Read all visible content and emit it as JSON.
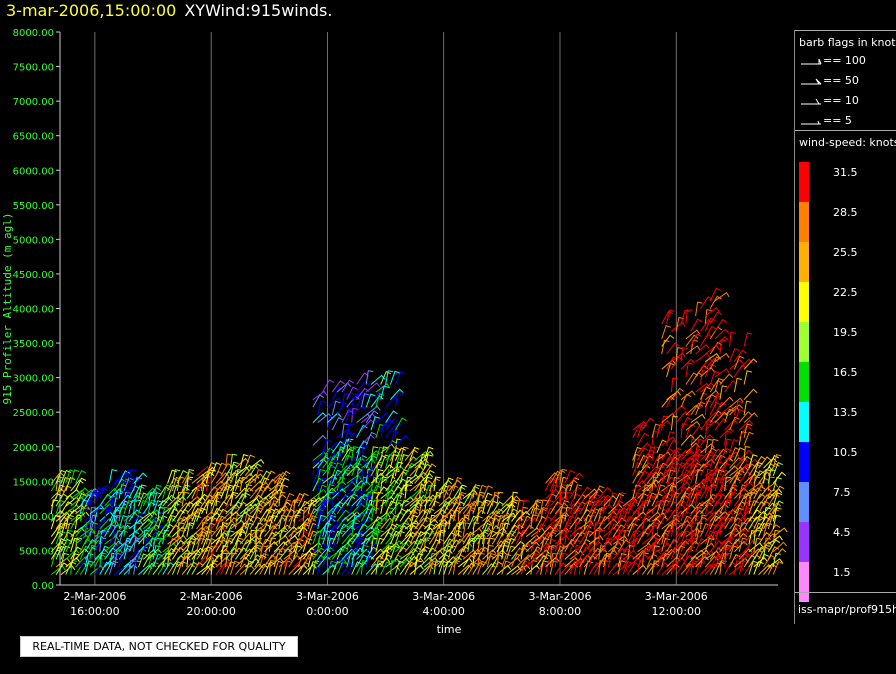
{
  "title": {
    "date": "3-mar-2006,15:00:00",
    "name": "XYWind:915winds."
  },
  "notice": "REAL-TIME DATA, NOT CHECKED FOR QUALITY",
  "legend": {
    "barb_title": "barb flags in knots",
    "barbs": [
      {
        "label": "== 100"
      },
      {
        "label": "== 50"
      },
      {
        "label": "== 10"
      },
      {
        "label": "== 5"
      }
    ],
    "speed_title": "wind-speed: knots",
    "speeds": [
      {
        "label": "31.5",
        "color": "#ff0000"
      },
      {
        "label": "28.5",
        "color": "#ff8000"
      },
      {
        "label": "25.5",
        "color": "#ffb000"
      },
      {
        "label": "22.5",
        "color": "#ffff00"
      },
      {
        "label": "19.5",
        "color": "#a0ff30"
      },
      {
        "label": "16.5",
        "color": "#00e000"
      },
      {
        "label": "13.5",
        "color": "#00ffff"
      },
      {
        "label": "10.5",
        "color": "#0000ff"
      },
      {
        "label": "7.5",
        "color": "#6090ff"
      },
      {
        "label": "4.5",
        "color": "#9933ff"
      },
      {
        "label": "1.5",
        "color": "#ff88ff"
      }
    ],
    "source": "iss-mapr/prof915h"
  },
  "chart_data": {
    "type": "scatter",
    "title": "3-mar-2006,15:00:00 XYWind:915winds.",
    "xlabel": "time",
    "ylabel": "915 Profiler Altitude (m agl)",
    "ylim": [
      0,
      8000
    ],
    "yticks": [
      "0.00",
      "500.00",
      "1000.00",
      "1500.00",
      "2000.00",
      "2500.00",
      "3000.00",
      "3500.00",
      "4000.00",
      "4500.00",
      "5000.00",
      "5500.00",
      "6000.00",
      "6500.00",
      "7000.00",
      "7500.00",
      "8000.00"
    ],
    "xticks": [
      {
        "date": "2-Mar-2006",
        "time": "16:00:00"
      },
      {
        "date": "2-Mar-2006",
        "time": "20:00:00"
      },
      {
        "date": "3-Mar-2006",
        "time": "0:00:00"
      },
      {
        "date": "3-Mar-2006",
        "time": "4:00:00"
      },
      {
        "date": "3-Mar-2006",
        "time": "8:00:00"
      },
      {
        "date": "3-Mar-2006",
        "time": "12:00:00"
      }
    ],
    "grid": "vertical",
    "xrange_hours": [
      -1.2,
      23.5
    ],
    "profiles": [
      {
        "t": -1.0,
        "top": 1500,
        "speed": 20
      },
      {
        "t": 0.0,
        "top": 1300,
        "speed": 13
      },
      {
        "t": 1.0,
        "top": 1500,
        "speed": 11
      },
      {
        "t": 2.0,
        "top": 1300,
        "speed": 16
      },
      {
        "t": 3.0,
        "top": 1500,
        "speed": 23
      },
      {
        "t": 4.0,
        "top": 1600,
        "speed": 26
      },
      {
        "t": 5.0,
        "top": 1700,
        "speed": 23
      },
      {
        "t": 6.0,
        "top": 1500,
        "speed": 25
      },
      {
        "t": 7.0,
        "top": 1200,
        "speed": 26
      },
      {
        "t": 8.0,
        "top": 2800,
        "speed": 14
      },
      {
        "t": 9.0,
        "top": 2900,
        "speed": 14
      },
      {
        "t": 10.0,
        "top": 2900,
        "speed": 20
      },
      {
        "t": 11.0,
        "top": 1800,
        "speed": 22
      },
      {
        "t": 12.0,
        "top": 1400,
        "speed": 25
      },
      {
        "t": 13.0,
        "top": 1300,
        "speed": 24
      },
      {
        "t": 14.0,
        "top": 1200,
        "speed": 25
      },
      {
        "t": 15.0,
        "top": 1100,
        "speed": 28
      },
      {
        "t": 16.0,
        "top": 1500,
        "speed": 30
      },
      {
        "t": 17.0,
        "top": 1300,
        "speed": 31
      },
      {
        "t": 18.0,
        "top": 1200,
        "speed": 31
      },
      {
        "t": 19.0,
        "top": 2300,
        "speed": 30
      },
      {
        "t": 20.0,
        "top": 3800,
        "speed": 31
      },
      {
        "t": 21.0,
        "top": 4200,
        "speed": 31
      },
      {
        "t": 22.0,
        "top": 3500,
        "speed": 30
      },
      {
        "t": 23.0,
        "top": 1700,
        "speed": 25
      }
    ]
  }
}
